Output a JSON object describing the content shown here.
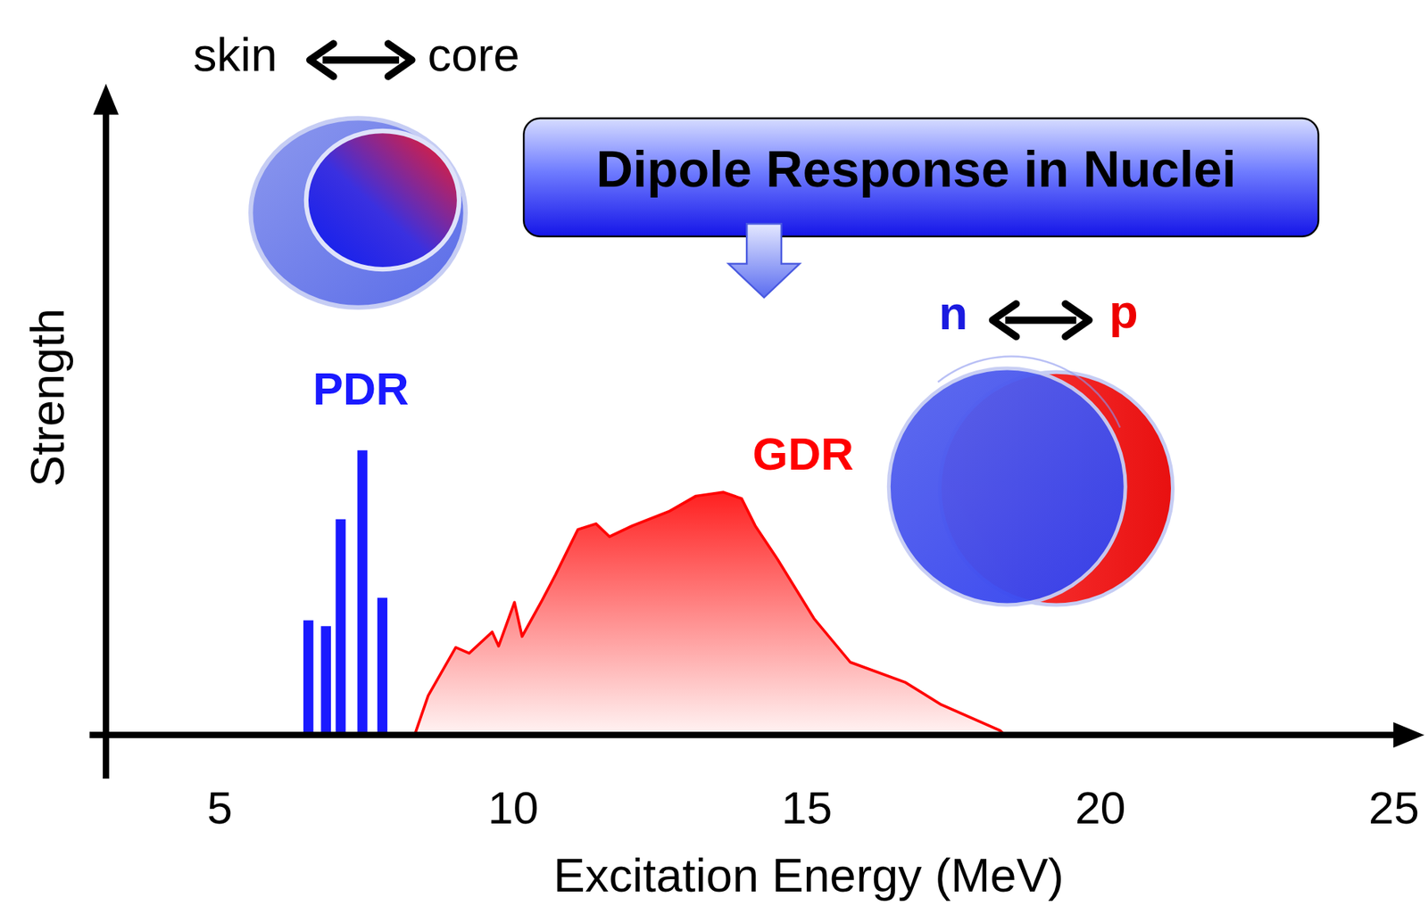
{
  "chart_data": {
    "type": "bar",
    "title": "Dipole Response in Nuclei",
    "x_label": "Excitation Energy (MeV)",
    "y_label": "Strength",
    "xlim": [
      3,
      25.3
    ],
    "xticks": [
      5,
      10,
      15,
      20,
      25
    ],
    "ylim": [
      0,
      10
    ],
    "yticks": [],
    "tick_labels": "x",
    "grid": false,
    "annotations": [
      "skin",
      "core",
      "n",
      "p"
    ],
    "series": [
      {
        "name": "PDR",
        "type": "bar",
        "color": "#1a1aff",
        "x": [
          6.51,
          6.81,
          7.06,
          7.43,
          7.77
        ],
        "values": [
          1.78,
          1.69,
          3.35,
          4.42,
          2.13
        ]
      },
      {
        "name": "GDR",
        "type": "area",
        "color": "#ff0000",
        "x": [
          8.32,
          8.55,
          9.02,
          9.25,
          9.64,
          9.75,
          10.02,
          10.15,
          10.49,
          10.72,
          11.1,
          11.41,
          11.64,
          12.03,
          12.65,
          13.11,
          13.58,
          13.89,
          14.12,
          14.5,
          15.12,
          15.74,
          16.67,
          17.29,
          18.29,
          18.37
        ],
        "values": [
          0,
          0.61,
          1.36,
          1.27,
          1.6,
          1.38,
          2.06,
          1.53,
          2.09,
          2.49,
          3.19,
          3.28,
          3.08,
          3.25,
          3.47,
          3.71,
          3.77,
          3.67,
          3.25,
          2.73,
          1.81,
          1.13,
          0.82,
          0.47,
          0.07,
          0
        ]
      }
    ]
  }
}
